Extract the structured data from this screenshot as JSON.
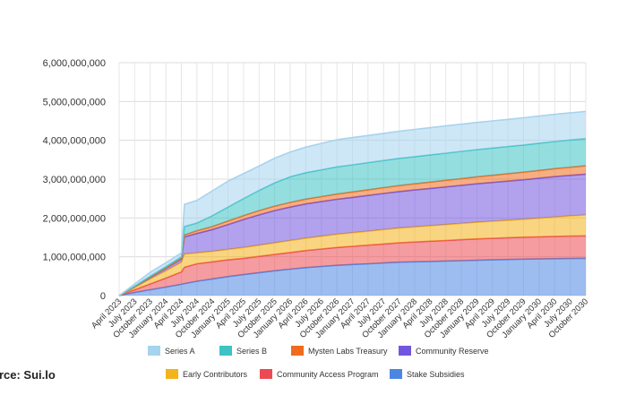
{
  "source_text": "urce: Sui.lo",
  "colors": {
    "Series A": "#a6d3ee",
    "Series B": "#3ec2c4",
    "Mysten Labs Treasury": "#f06b1d",
    "Community Reserve": "#7356df",
    "Early Contributors": "#f4b21b",
    "Community Access Program": "#ec4a52",
    "Stake Subsidies": "#4c86e3"
  },
  "chart_data": {
    "type": "area",
    "stacked": true,
    "title": "",
    "xlabel": "",
    "ylabel": "",
    "ylim": [
      0,
      6000000000
    ],
    "y_ticks": [
      0,
      1000000000,
      2000000000,
      3000000000,
      4000000000,
      5000000000,
      6000000000
    ],
    "y_tick_labels": [
      "0",
      "1,000,000,000",
      "2,000,000,000",
      "3,000,000,000",
      "4,000,000,000",
      "5,000,000,000",
      "6,000,000,000"
    ],
    "grid": true,
    "legend_position": "bottom",
    "x_tick_labels": [
      "April 2023",
      "July 2023",
      "October 2023",
      "January 2024",
      "April 2024",
      "July 2024",
      "October 2024",
      "January 2025",
      "April 2025",
      "July 2025",
      "October 2025",
      "January 2026",
      "April 2026",
      "July 2026",
      "October 2026",
      "January 2027",
      "April 2027",
      "July 2027",
      "October 2027",
      "January 2028",
      "April 2028",
      "July 2028",
      "October 2028",
      "January 2029",
      "April 2029",
      "July 2029",
      "October 2029",
      "January 2030",
      "April 2030",
      "July 2030",
      "October 2030"
    ],
    "x": [
      0,
      1,
      2,
      3,
      4,
      4.2,
      5,
      6,
      7,
      8,
      9,
      10,
      11,
      12,
      13,
      14,
      15,
      16,
      17,
      18,
      19,
      20,
      21,
      22,
      23,
      24,
      25,
      26,
      27,
      28,
      29,
      30
    ],
    "series": [
      {
        "name": "Stake Subsidies",
        "values": [
          0,
          80000000,
          150000000,
          220000000,
          290000000,
          310000000,
          370000000,
          430000000,
          490000000,
          540000000,
          590000000,
          640000000,
          680000000,
          720000000,
          750000000,
          780000000,
          800000000,
          820000000,
          840000000,
          860000000,
          870000000,
          880000000,
          890000000,
          900000000,
          910000000,
          920000000,
          930000000,
          940000000,
          945000000,
          950000000,
          955000000,
          960000000
        ]
      },
      {
        "name": "Community Access Program",
        "values": [
          0,
          70000000,
          150000000,
          230000000,
          320000000,
          420000000,
          450000000,
          440000000,
          430000000,
          420000000,
          420000000,
          420000000,
          430000000,
          440000000,
          450000000,
          460000000,
          470000000,
          480000000,
          490000000,
          500000000,
          510000000,
          520000000,
          530000000,
          540000000,
          550000000,
          555000000,
          560000000,
          565000000,
          570000000,
          575000000,
          578000000,
          580000000
        ]
      },
      {
        "name": "Early Contributors",
        "values": [
          0,
          60000000,
          130000000,
          190000000,
          250000000,
          340000000,
          280000000,
          270000000,
          270000000,
          280000000,
          290000000,
          300000000,
          310000000,
          320000000,
          330000000,
          340000000,
          350000000,
          360000000,
          370000000,
          380000000,
          390000000,
          400000000,
          410000000,
          420000000,
          430000000,
          440000000,
          450000000,
          460000000,
          480000000,
          500000000,
          520000000,
          540000000
        ]
      },
      {
        "name": "Community Reserve",
        "values": [
          0,
          20000000,
          40000000,
          60000000,
          80000000,
          440000000,
          500000000,
          560000000,
          640000000,
          720000000,
          780000000,
          830000000,
          860000000,
          880000000,
          890000000,
          900000000,
          910000000,
          920000000,
          930000000,
          940000000,
          950000000,
          960000000,
          970000000,
          980000000,
          990000000,
          1000000000,
          1010000000,
          1020000000,
          1030000000,
          1040000000,
          1045000000,
          1050000000
        ]
      },
      {
        "name": "Mysten Labs Treasury",
        "values": [
          0,
          5000000,
          10000000,
          15000000,
          20000000,
          50000000,
          70000000,
          80000000,
          90000000,
          100000000,
          110000000,
          115000000,
          120000000,
          125000000,
          130000000,
          135000000,
          140000000,
          145000000,
          150000000,
          155000000,
          160000000,
          165000000,
          170000000,
          175000000,
          180000000,
          185000000,
          190000000,
          195000000,
          200000000,
          205000000,
          210000000,
          215000000
        ]
      },
      {
        "name": "Series B",
        "values": [
          0,
          10000000,
          20000000,
          30000000,
          40000000,
          220000000,
          200000000,
          280000000,
          360000000,
          440000000,
          520000000,
          600000000,
          660000000,
          680000000,
          690000000,
          700000000,
          700000000,
          700000000,
          700000000,
          700000000,
          700000000,
          700000000,
          700000000,
          700000000,
          700000000,
          700000000,
          700000000,
          700000000,
          700000000,
          700000000,
          700000000,
          700000000
        ]
      },
      {
        "name": "Series A",
        "values": [
          0,
          55000000,
          100000000,
          100000000,
          100000000,
          570000000,
          580000000,
          640000000,
          670000000,
          640000000,
          630000000,
          635000000,
          640000000,
          660000000,
          680000000,
          700000000,
          700000000,
          700000000,
          700000000,
          700000000,
          700000000,
          700000000,
          700000000,
          700000000,
          700000000,
          700000000,
          700000000,
          700000000,
          700000000,
          700000000,
          700000000,
          700000000
        ]
      }
    ],
    "legend": [
      [
        "Series A",
        "Series B",
        "Mysten Labs Treasury",
        "Community Reserve"
      ],
      [
        "Early Contributors",
        "Community Access Program",
        "Stake Subsidies"
      ]
    ]
  }
}
